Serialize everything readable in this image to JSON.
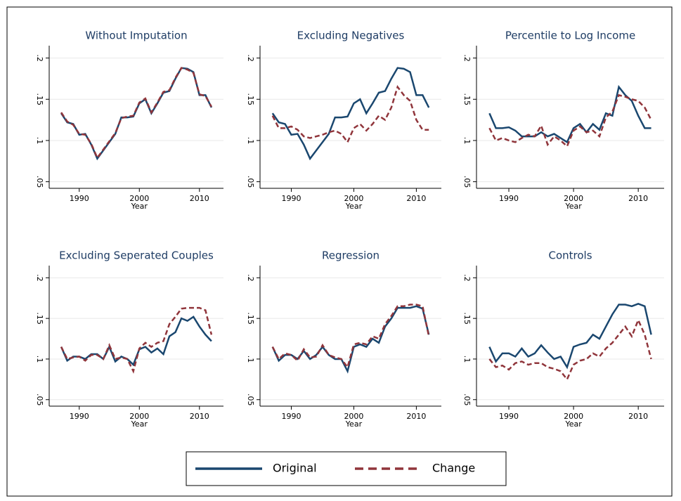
{
  "chart_data": [
    {
      "type": "line",
      "title": "Without Imputation",
      "xlabel": "Year",
      "x": [
        1987,
        1988,
        1989,
        1990,
        1991,
        1992,
        1993,
        1994,
        1995,
        1996,
        1997,
        1998,
        1999,
        2000,
        2001,
        2002,
        2003,
        2004,
        2005,
        2006,
        2007,
        2008,
        2009,
        2010,
        2011,
        2012
      ],
      "series": [
        {
          "name": "Original",
          "color": "#1a476f",
          "dash": false,
          "values": [
            0.133,
            0.122,
            0.12,
            0.107,
            0.108,
            0.095,
            0.078,
            0.088,
            0.098,
            0.108,
            0.128,
            0.128,
            0.129,
            0.145,
            0.15,
            0.133,
            0.145,
            0.158,
            0.16,
            0.175,
            0.188,
            0.187,
            0.183,
            0.155,
            0.155,
            0.14
          ]
        },
        {
          "name": "Change",
          "color": "#90353b",
          "dash": true,
          "values": [
            0.134,
            0.123,
            0.119,
            0.108,
            0.107,
            0.096,
            0.079,
            0.089,
            0.099,
            0.109,
            0.127,
            0.129,
            0.13,
            0.146,
            0.151,
            0.134,
            0.146,
            0.159,
            0.161,
            0.176,
            0.188,
            0.186,
            0.182,
            0.156,
            0.154,
            0.141
          ]
        }
      ],
      "xlim": [
        1985,
        2014
      ],
      "xticks": [
        1990,
        2000,
        2010
      ],
      "ylim": [
        0.042,
        0.215
      ],
      "yticks": [
        {
          "value": 0.05,
          "label": ".05"
        },
        {
          "value": 0.1,
          "label": ".1"
        },
        {
          "value": 0.15,
          "label": ".15"
        },
        {
          "value": 0.2,
          "label": ".2"
        }
      ],
      "grid": true
    },
    {
      "type": "line",
      "title": "Excluding Negatives",
      "xlabel": "Year",
      "x": [
        1987,
        1988,
        1989,
        1990,
        1991,
        1992,
        1993,
        1994,
        1995,
        1996,
        1997,
        1998,
        1999,
        2000,
        2001,
        2002,
        2003,
        2004,
        2005,
        2006,
        2007,
        2008,
        2009,
        2010,
        2011,
        2012
      ],
      "series": [
        {
          "name": "Original",
          "color": "#1a476f",
          "dash": false,
          "values": [
            0.133,
            0.122,
            0.12,
            0.107,
            0.108,
            0.095,
            0.078,
            0.088,
            0.098,
            0.108,
            0.128,
            0.128,
            0.129,
            0.145,
            0.15,
            0.133,
            0.145,
            0.158,
            0.16,
            0.175,
            0.188,
            0.187,
            0.183,
            0.155,
            0.155,
            0.14
          ]
        },
        {
          "name": "Change",
          "color": "#90353b",
          "dash": true,
          "values": [
            0.13,
            0.115,
            0.115,
            0.117,
            0.113,
            0.105,
            0.103,
            0.105,
            0.107,
            0.11,
            0.112,
            0.108,
            0.098,
            0.115,
            0.12,
            0.112,
            0.12,
            0.13,
            0.125,
            0.14,
            0.165,
            0.155,
            0.148,
            0.125,
            0.113,
            0.113
          ]
        }
      ],
      "xlim": [
        1985,
        2014
      ],
      "xticks": [
        1990,
        2000,
        2010
      ],
      "ylim": [
        0.042,
        0.215
      ],
      "yticks": [
        {
          "value": 0.05,
          "label": ".05"
        },
        {
          "value": 0.1,
          "label": ".1"
        },
        {
          "value": 0.15,
          "label": ".15"
        },
        {
          "value": 0.2,
          "label": ".2"
        }
      ],
      "grid": true
    },
    {
      "type": "line",
      "title": "Percentile to Log Income",
      "xlabel": "Year",
      "x": [
        1987,
        1988,
        1989,
        1990,
        1991,
        1992,
        1993,
        1994,
        1995,
        1996,
        1997,
        1998,
        1999,
        2000,
        2001,
        2002,
        2003,
        2004,
        2005,
        2006,
        2007,
        2008,
        2009,
        2010,
        2011,
        2012
      ],
      "series": [
        {
          "name": "Original",
          "color": "#1a476f",
          "dash": false,
          "values": [
            0.133,
            0.115,
            0.115,
            0.116,
            0.112,
            0.105,
            0.105,
            0.105,
            0.11,
            0.105,
            0.108,
            0.103,
            0.098,
            0.115,
            0.12,
            0.11,
            0.12,
            0.113,
            0.133,
            0.13,
            0.165,
            0.155,
            0.148,
            0.13,
            0.115,
            0.115
          ]
        },
        {
          "name": "Change",
          "color": "#90353b",
          "dash": true,
          "values": [
            0.115,
            0.1,
            0.103,
            0.1,
            0.098,
            0.103,
            0.107,
            0.105,
            0.118,
            0.095,
            0.105,
            0.1,
            0.093,
            0.112,
            0.117,
            0.11,
            0.112,
            0.105,
            0.128,
            0.135,
            0.155,
            0.153,
            0.15,
            0.148,
            0.14,
            0.125
          ]
        }
      ],
      "xlim": [
        1985,
        2014
      ],
      "xticks": [
        1990,
        2000,
        2010
      ],
      "ylim": [
        0.042,
        0.215
      ],
      "yticks": [
        {
          "value": 0.05,
          "label": ".05"
        },
        {
          "value": 0.1,
          "label": ".1"
        },
        {
          "value": 0.15,
          "label": ".15"
        },
        {
          "value": 0.2,
          "label": ".2"
        }
      ],
      "grid": true
    },
    {
      "type": "line",
      "title": "Excluding Seperated Couples",
      "xlabel": "Year",
      "x": [
        1987,
        1988,
        1989,
        1990,
        1991,
        1992,
        1993,
        1994,
        1995,
        1996,
        1997,
        1998,
        1999,
        2000,
        2001,
        2002,
        2003,
        2004,
        2005,
        2006,
        2007,
        2008,
        2009,
        2010,
        2011,
        2012
      ],
      "series": [
        {
          "name": "Original",
          "color": "#1a476f",
          "dash": false,
          "values": [
            0.115,
            0.098,
            0.103,
            0.103,
            0.1,
            0.106,
            0.106,
            0.1,
            0.115,
            0.097,
            0.103,
            0.1,
            0.093,
            0.112,
            0.115,
            0.108,
            0.113,
            0.106,
            0.128,
            0.133,
            0.15,
            0.147,
            0.152,
            0.14,
            0.13,
            0.122
          ]
        },
        {
          "name": "Change",
          "color": "#90353b",
          "dash": true,
          "values": [
            0.115,
            0.1,
            0.102,
            0.103,
            0.098,
            0.105,
            0.105,
            0.1,
            0.117,
            0.1,
            0.102,
            0.1,
            0.085,
            0.113,
            0.12,
            0.115,
            0.12,
            0.122,
            0.143,
            0.152,
            0.162,
            0.163,
            0.163,
            0.163,
            0.16,
            0.13
          ]
        }
      ],
      "xlim": [
        1985,
        2014
      ],
      "xticks": [
        1990,
        2000,
        2010
      ],
      "ylim": [
        0.042,
        0.215
      ],
      "yticks": [
        {
          "value": 0.05,
          "label": ".05"
        },
        {
          "value": 0.1,
          "label": ".1"
        },
        {
          "value": 0.15,
          "label": ".15"
        },
        {
          "value": 0.2,
          "label": ".2"
        }
      ],
      "grid": true
    },
    {
      "type": "line",
      "title": "Regression",
      "xlabel": "Year",
      "x": [
        1987,
        1988,
        1989,
        1990,
        1991,
        1992,
        1993,
        1994,
        1995,
        1996,
        1997,
        1998,
        1999,
        2000,
        2001,
        2002,
        2003,
        2004,
        2005,
        2006,
        2007,
        2008,
        2009,
        2010,
        2011,
        2012
      ],
      "series": [
        {
          "name": "Original",
          "color": "#1a476f",
          "dash": false,
          "values": [
            0.115,
            0.098,
            0.105,
            0.105,
            0.1,
            0.11,
            0.1,
            0.105,
            0.115,
            0.105,
            0.1,
            0.1,
            0.085,
            0.115,
            0.118,
            0.115,
            0.125,
            0.12,
            0.14,
            0.15,
            0.163,
            0.163,
            0.163,
            0.165,
            0.162,
            0.13
          ]
        },
        {
          "name": "Change",
          "color": "#90353b",
          "dash": true,
          "values": [
            0.115,
            0.1,
            0.107,
            0.105,
            0.098,
            0.112,
            0.102,
            0.103,
            0.117,
            0.105,
            0.102,
            0.1,
            0.09,
            0.118,
            0.12,
            0.118,
            0.128,
            0.125,
            0.143,
            0.153,
            0.165,
            0.165,
            0.167,
            0.167,
            0.165,
            0.128
          ]
        }
      ],
      "xlim": [
        1985,
        2014
      ],
      "xticks": [
        1990,
        2000,
        2010
      ],
      "ylim": [
        0.042,
        0.215
      ],
      "yticks": [
        {
          "value": 0.05,
          "label": ".05"
        },
        {
          "value": 0.1,
          "label": ".1"
        },
        {
          "value": 0.15,
          "label": ".15"
        },
        {
          "value": 0.2,
          "label": ".2"
        }
      ],
      "grid": true
    },
    {
      "type": "line",
      "title": "Controls",
      "xlabel": "Year",
      "x": [
        1987,
        1988,
        1989,
        1990,
        1991,
        1992,
        1993,
        1994,
        1995,
        1996,
        1997,
        1998,
        1999,
        2000,
        2001,
        2002,
        2003,
        2004,
        2005,
        2006,
        2007,
        2008,
        2009,
        2010,
        2011,
        2012
      ],
      "series": [
        {
          "name": "Original",
          "color": "#1a476f",
          "dash": false,
          "values": [
            0.115,
            0.097,
            0.107,
            0.107,
            0.103,
            0.113,
            0.103,
            0.107,
            0.117,
            0.108,
            0.1,
            0.103,
            0.09,
            0.115,
            0.118,
            0.12,
            0.13,
            0.125,
            0.14,
            0.155,
            0.167,
            0.167,
            0.165,
            0.168,
            0.165,
            0.13
          ]
        },
        {
          "name": "Change",
          "color": "#90353b",
          "dash": true,
          "values": [
            0.1,
            0.09,
            0.092,
            0.087,
            0.095,
            0.097,
            0.093,
            0.095,
            0.095,
            0.09,
            0.088,
            0.085,
            0.075,
            0.093,
            0.098,
            0.1,
            0.107,
            0.103,
            0.113,
            0.12,
            0.13,
            0.14,
            0.128,
            0.148,
            0.13,
            0.1
          ]
        }
      ],
      "xlim": [
        1985,
        2014
      ],
      "xticks": [
        1990,
        2000,
        2010
      ],
      "ylim": [
        0.042,
        0.215
      ],
      "yticks": [
        {
          "value": 0.05,
          "label": ".05"
        },
        {
          "value": 0.1,
          "label": ".1"
        },
        {
          "value": 0.15,
          "label": ".15"
        },
        {
          "value": 0.2,
          "label": ".2"
        }
      ],
      "grid": true
    }
  ]
}
